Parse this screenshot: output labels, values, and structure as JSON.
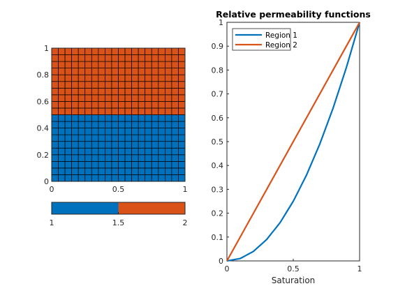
{
  "colors": {
    "region_1": "#0072BD",
    "region_2": "#D95319",
    "axis": "#262626",
    "grid_line": "#000000"
  },
  "chart_data": [
    {
      "type": "heatmap",
      "description_source": "grid plot of two regions on a 20x20 cartesian grid",
      "x": {
        "min": 0,
        "max": 1,
        "ticks": [
          "0",
          "0.5",
          "1"
        ]
      },
      "y": {
        "min": 0,
        "max": 1,
        "ticks": [
          "0",
          "0.2",
          "0.4",
          "0.6",
          "0.8",
          "1"
        ]
      },
      "cells_x": 20,
      "cells_y": 20,
      "regions": [
        {
          "value": 1,
          "y_from": 0,
          "y_to": 0.5
        },
        {
          "value": 2,
          "y_from": 0.5,
          "y_to": 1
        }
      ],
      "colorbar": {
        "min": 1,
        "max": 2,
        "ticks": [
          "1",
          "1.5",
          "2"
        ]
      }
    },
    {
      "type": "line",
      "title": "Relative permeability functions",
      "xlabel": "Saturation",
      "ylabel": "",
      "xlim": [
        0,
        1
      ],
      "ylim": [
        0,
        1
      ],
      "x_ticks": [
        "0",
        "0.5",
        "1"
      ],
      "y_ticks": [
        "0",
        "0.1",
        "0.2",
        "0.3",
        "0.4",
        "0.5",
        "0.6",
        "0.7",
        "0.8",
        "0.9",
        "1"
      ],
      "legend_position": "top-left",
      "series": [
        {
          "name": "Region 1",
          "x": [
            0,
            0.1,
            0.2,
            0.3,
            0.4,
            0.5,
            0.6,
            0.7,
            0.8,
            0.9,
            1
          ],
          "y": [
            0,
            0.01,
            0.04,
            0.09,
            0.16,
            0.25,
            0.36,
            0.49,
            0.64,
            0.81,
            1
          ]
        },
        {
          "name": "Region 2",
          "x": [
            0,
            1
          ],
          "y": [
            0,
            1
          ]
        }
      ]
    }
  ]
}
